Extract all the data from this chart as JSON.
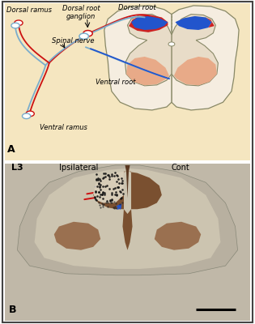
{
  "panel_a_bg": "#f5e6c0",
  "panel_b_bg": "#c8bfb0",
  "label_a": "A",
  "label_b": "B",
  "label_l3": "L3",
  "label_ipsi": "Ipsilateral",
  "label_cont": "Cont",
  "text_dorsal_ramus": "Dorsal ramus",
  "text_dorsal_root_ganglion": "Dorsal root\nganglion",
  "text_dorsal_root": "Dorsal root",
  "text_spinal_nerve": "Spinal nerve",
  "text_ventral_root": "Ventral root",
  "text_ventral_ramus": "Ventral ramus",
  "red_color": "#cc1111",
  "blue_color": "#2255cc",
  "light_blue": "#7aadcc",
  "cord_outline": "#888866",
  "cord_fill": "#f5ede0",
  "gray_matter_fill": "#e8dcc8",
  "dorsal_red": "#cc2222",
  "dorsal_blue": "#2255cc",
  "ventral_fill": "#e8aa88",
  "border_color": "#444444"
}
